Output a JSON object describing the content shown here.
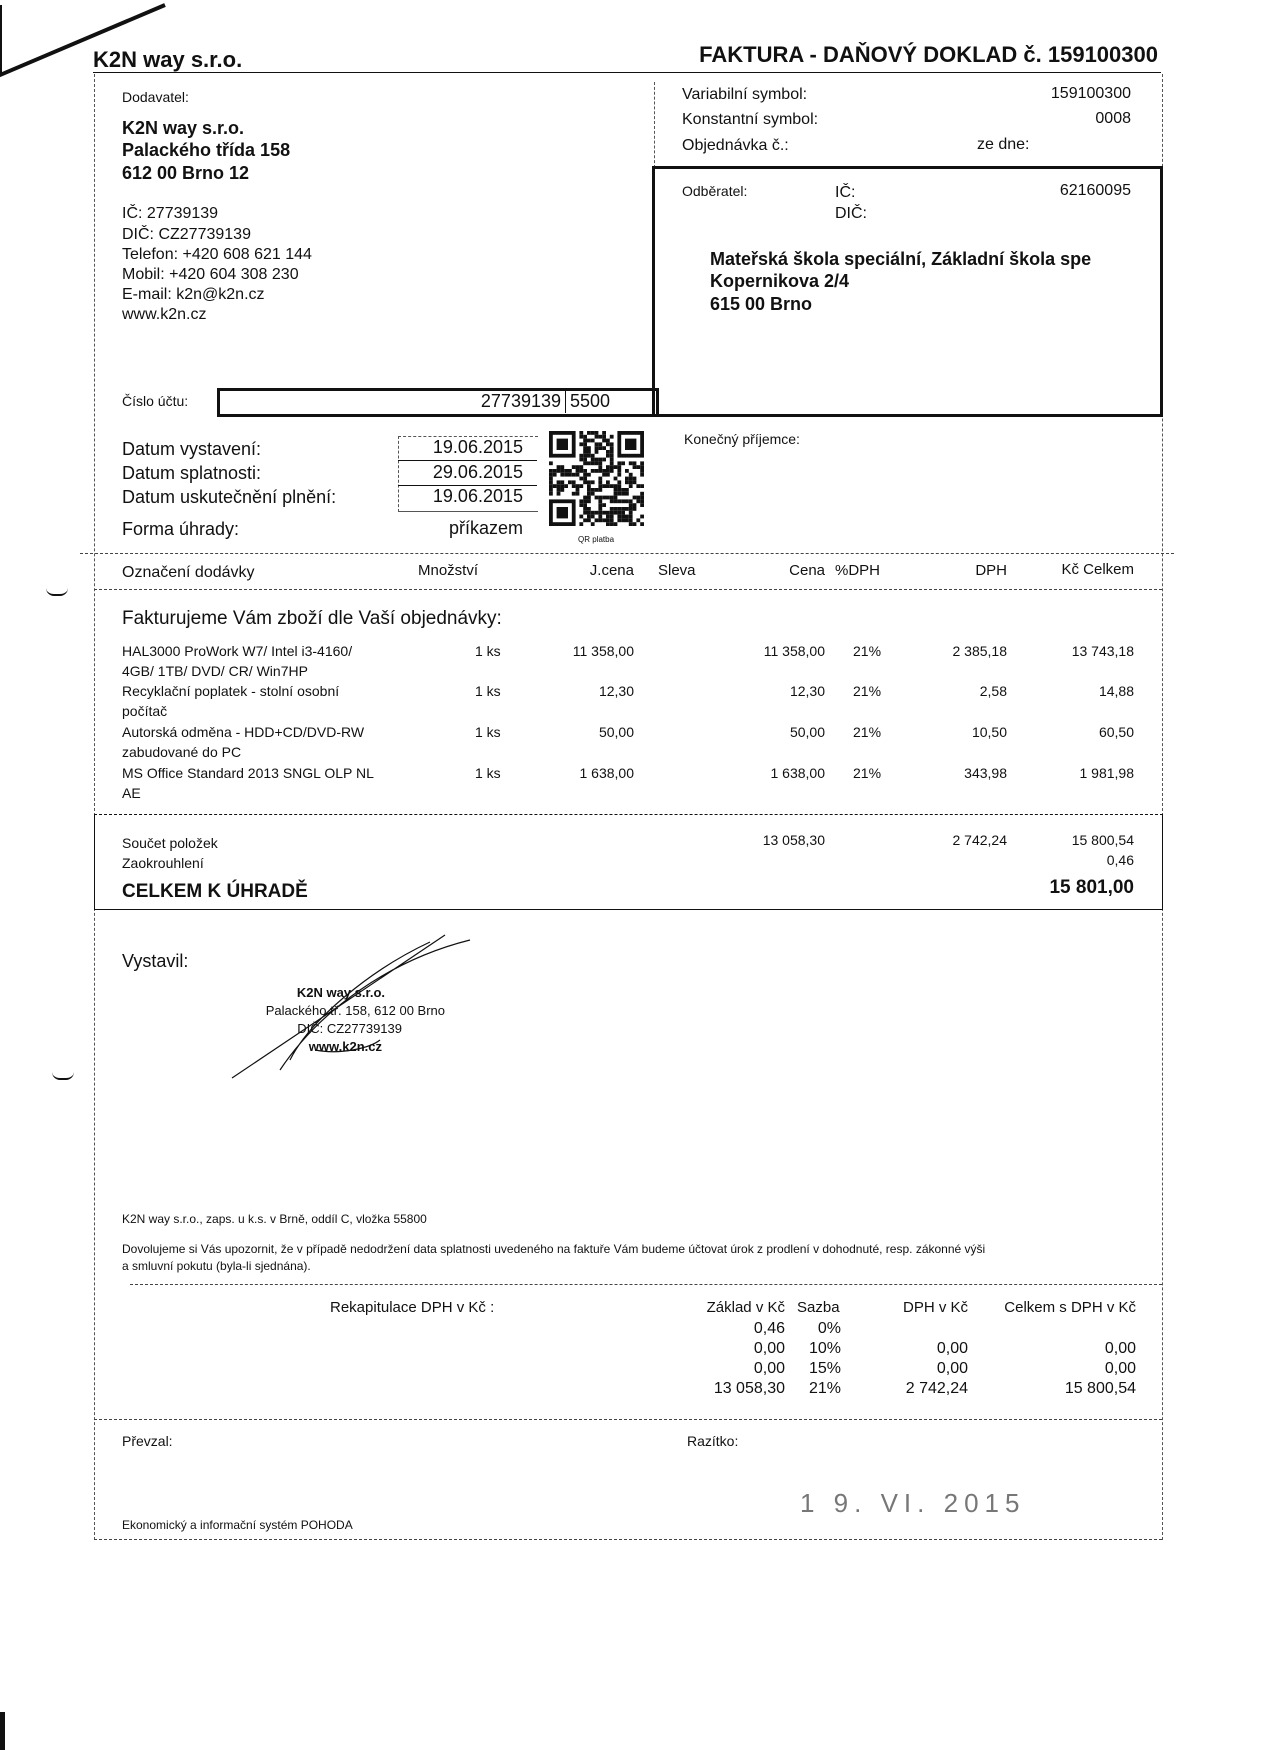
{
  "header": {
    "company": "K2N way s.r.o.",
    "doc_title": "FAKTURA - DAŇOVÝ DOKLAD č. 159100300"
  },
  "supplier": {
    "label": "Dodavatel:",
    "name": "K2N way s.r.o.",
    "street": "Palackého třída 158",
    "city": "612 00 Brno 12",
    "ic": "IČ: 27739139",
    "dic": "DIČ: CZ27739139",
    "phone": "Telefon: +420 608 621 144",
    "mobile": "Mobil: +420 604 308 230",
    "email": "E-mail: k2n@k2n.cz",
    "web": "www.k2n.cz"
  },
  "symbols": {
    "variable_label": "Variabilní symbol:",
    "variable_value": "159100300",
    "constant_label": "Konstantní symbol:",
    "constant_value": "0008",
    "order_label": "Objednávka č.:",
    "order_date_label": "ze dne:"
  },
  "customer": {
    "label": "Odběratel:",
    "ic_label": "IČ:",
    "ic_value": "62160095",
    "dic_label": "DIČ:",
    "name": "Mateřská škola speciální, Základní škola spe",
    "street": "Kopernikova 2/4",
    "city": "615 00 Brno"
  },
  "account": {
    "label": "Číslo účtu:",
    "number": "27739139",
    "bank_code": "5500"
  },
  "dates": {
    "issued_label": "Datum vystavení:",
    "issued": "19.06.2015",
    "due_label": "Datum splatnosti:",
    "due": "29.06.2015",
    "taxable_label": "Datum uskutečnění plnění:",
    "taxable": "19.06.2015",
    "payment_label": "Forma úhrady:",
    "payment": "příkazem",
    "qr_label": "QR platba"
  },
  "final_recipient_label": "Konečný příjemce:",
  "table": {
    "headers": {
      "item": "Označení dodávky",
      "qty": "Množství",
      "unit_price": "J.cena",
      "discount": "Sleva",
      "price": "Cena",
      "vat_rate": "%DPH",
      "vat": "DPH",
      "total": "Kč Celkem"
    },
    "intro": "Fakturujeme Vám zboží dle Vaší objednávky:",
    "rows": [
      {
        "line1": "HAL3000 ProWork W7/ Intel i3-4160/",
        "line2": "4GB/ 1TB/ DVD/ CR/ Win7HP",
        "qty": "1 ks",
        "unit_price": "11 358,00",
        "price": "11 358,00",
        "vat_rate": "21%",
        "vat": "2 385,18",
        "total": "13 743,18"
      },
      {
        "line1": "Recyklační poplatek - stolní osobní",
        "line2": "počítač",
        "qty": "1 ks",
        "unit_price": "12,30",
        "price": "12,30",
        "vat_rate": "21%",
        "vat": "2,58",
        "total": "14,88"
      },
      {
        "line1": "Autorská odměna - HDD+CD/DVD-RW",
        "line2": "zabudované do PC",
        "qty": "1 ks",
        "unit_price": "50,00",
        "price": "50,00",
        "vat_rate": "21%",
        "vat": "10,50",
        "total": "60,50"
      },
      {
        "line1": "MS Office Standard 2013 SNGL OLP NL",
        "line2": "AE",
        "qty": "1 ks",
        "unit_price": "1 638,00",
        "price": "1 638,00",
        "vat_rate": "21%",
        "vat": "343,98",
        "total": "1 981,98"
      }
    ]
  },
  "totals": {
    "sum_label": "Součet položek",
    "sum_price": "13 058,30",
    "sum_vat": "2 742,24",
    "sum_total": "15 800,54",
    "rounding_label": "Zaokrouhlení",
    "rounding": "0,46",
    "due_label": "CELKEM K ÚHRADĚ",
    "due": "15 801,00"
  },
  "issued_by": {
    "label": "Vystavil:",
    "stamp": [
      "K2N way s.r.o.",
      "Palackého tř. 158, 612 00 Brno",
      "DIČ: CZ27739139",
      "www.k2n.cz"
    ]
  },
  "footer": {
    "registry": "K2N way s.r.o., zaps. u k.s. v Brně, oddíl C, vložka 55800",
    "notice1": "Dovolujeme si Vás upozornit, že v případě nedodržení data splatnosti uvedeného na faktuře Vám budeme účtovat úrok z prodlení v dohodnuté, resp. zákonné výši",
    "notice2": "a smluvní pokutu (byla-li sjednána)."
  },
  "vat_recap": {
    "label": "Rekapitulace DPH v Kč :",
    "headers": {
      "base": "Základ v Kč",
      "rate": "Sazba",
      "vat": "DPH v Kč",
      "total": "Celkem s  DPH v Kč"
    },
    "rows": [
      {
        "base": "0,46",
        "rate": "0%",
        "vat": "",
        "total": ""
      },
      {
        "base": "0,00",
        "rate": "10%",
        "vat": "0,00",
        "total": "0,00"
      },
      {
        "base": "0,00",
        "rate": "15%",
        "vat": "0,00",
        "total": "0,00"
      },
      {
        "base": "13 058,30",
        "rate": "21%",
        "vat": "2 742,24",
        "total": "15 800,54"
      }
    ]
  },
  "receipt": {
    "received_label": "Převzal:",
    "stamp_label": "Razítko:",
    "stamp_date": "1 9. VI. 2015",
    "system": "Ekonomický a informační systém POHODA"
  }
}
